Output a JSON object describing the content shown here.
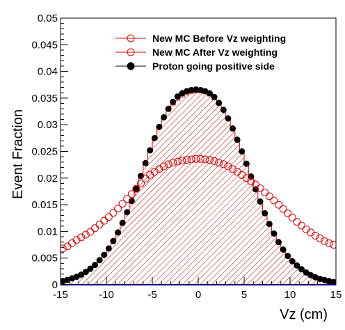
{
  "chart_data": {
    "type": "scatter",
    "title": "",
    "xlabel": "Vz (cm)",
    "ylabel": "Event Fraction",
    "xlim": [
      -15,
      15
    ],
    "ylim": [
      0,
      0.05
    ],
    "x_ticks": [
      -15,
      -10,
      -5,
      0,
      5,
      10,
      15
    ],
    "x_tick_labels": [
      "-15",
      "-10",
      "-5",
      "0",
      "5",
      "10",
      "15"
    ],
    "y_ticks": [
      0,
      0.005,
      0.01,
      0.015,
      0.02,
      0.025,
      0.03,
      0.035,
      0.04,
      0.045,
      0.05
    ],
    "y_tick_labels": [
      "0",
      "0.005",
      "0.01",
      "0.015",
      "0.02",
      "0.025",
      "0.03",
      "0.035",
      "0.04",
      "0.045",
      "0.05"
    ],
    "legend_position": "top-right",
    "grid": false,
    "x": [
      -14.75,
      -14.25,
      -13.75,
      -13.25,
      -12.75,
      -12.25,
      -11.75,
      -11.25,
      -10.75,
      -10.25,
      -9.75,
      -9.25,
      -8.75,
      -8.25,
      -7.75,
      -7.25,
      -6.75,
      -6.25,
      -5.75,
      -5.25,
      -4.75,
      -4.25,
      -3.75,
      -3.25,
      -2.75,
      -2.25,
      -1.75,
      -1.25,
      -0.75,
      -0.25,
      0.25,
      0.75,
      1.25,
      1.75,
      2.25,
      2.75,
      3.25,
      3.75,
      4.25,
      4.75,
      5.25,
      5.75,
      6.25,
      6.75,
      7.25,
      7.75,
      8.25,
      8.75,
      9.25,
      9.75,
      10.25,
      10.75,
      11.25,
      11.75,
      12.25,
      12.75,
      13.25,
      13.75,
      14.25,
      14.75
    ],
    "series": [
      {
        "name": "New MC Before Vz weighting",
        "style": "open-circle",
        "color": "#e00000",
        "values": [
          0.0068,
          0.0072,
          0.0078,
          0.0084,
          0.0089,
          0.0094,
          0.0099,
          0.0106,
          0.0113,
          0.012,
          0.0127,
          0.0135,
          0.0143,
          0.0152,
          0.0161,
          0.017,
          0.018,
          0.019,
          0.0199,
          0.0206,
          0.0212,
          0.0217,
          0.0222,
          0.0226,
          0.0229,
          0.0231,
          0.0233,
          0.0234,
          0.0235,
          0.0236,
          0.0236,
          0.0235,
          0.0234,
          0.0232,
          0.0229,
          0.0226,
          0.0222,
          0.0217,
          0.0212,
          0.0206,
          0.02,
          0.0194,
          0.0188,
          0.0181,
          0.0173,
          0.0166,
          0.0158,
          0.015,
          0.0142,
          0.0134,
          0.0126,
          0.0118,
          0.0111,
          0.0104,
          0.0098,
          0.0092,
          0.0087,
          0.0082,
          0.0078,
          0.0075
        ]
      },
      {
        "name": "New MC After Vz weighting",
        "style": "hatched-histogram",
        "color": "#e00000",
        "values": [
          0.0007,
          0.0009,
          0.0012,
          0.0015,
          0.0019,
          0.0024,
          0.003,
          0.0037,
          0.0046,
          0.0056,
          0.0068,
          0.0082,
          0.0098,
          0.0116,
          0.0136,
          0.0157,
          0.018,
          0.0204,
          0.0228,
          0.0252,
          0.0274,
          0.0294,
          0.0311,
          0.0325,
          0.0337,
          0.0346,
          0.0352,
          0.0356,
          0.0359,
          0.036,
          0.036,
          0.0358,
          0.0354,
          0.0347,
          0.0337,
          0.0325,
          0.031,
          0.0292,
          0.0272,
          0.025,
          0.0227,
          0.0203,
          0.0179,
          0.0156,
          0.0134,
          0.0114,
          0.0096,
          0.008,
          0.0066,
          0.0054,
          0.0044,
          0.0036,
          0.0029,
          0.0023,
          0.0018,
          0.0014,
          0.0011,
          0.0009,
          0.0007,
          0.0005
        ]
      },
      {
        "name": "Proton going positive side",
        "style": "filled-circle",
        "color": "#000000",
        "values": [
          0.0007,
          0.0009,
          0.0012,
          0.0015,
          0.0019,
          0.0024,
          0.003,
          0.0037,
          0.0046,
          0.0056,
          0.0068,
          0.0082,
          0.0098,
          0.0116,
          0.0136,
          0.0157,
          0.018,
          0.0204,
          0.0228,
          0.0252,
          0.0275,
          0.0296,
          0.0314,
          0.033,
          0.0343,
          0.0353,
          0.0359,
          0.0363,
          0.0365,
          0.0366,
          0.0365,
          0.0363,
          0.0359,
          0.0352,
          0.0341,
          0.0328,
          0.0312,
          0.0293,
          0.0272,
          0.025,
          0.0227,
          0.0203,
          0.0179,
          0.0156,
          0.0134,
          0.0114,
          0.0096,
          0.008,
          0.0066,
          0.0054,
          0.0044,
          0.0036,
          0.0029,
          0.0023,
          0.0018,
          0.0014,
          0.0011,
          0.0009,
          0.0007,
          0.0005
        ]
      }
    ]
  }
}
